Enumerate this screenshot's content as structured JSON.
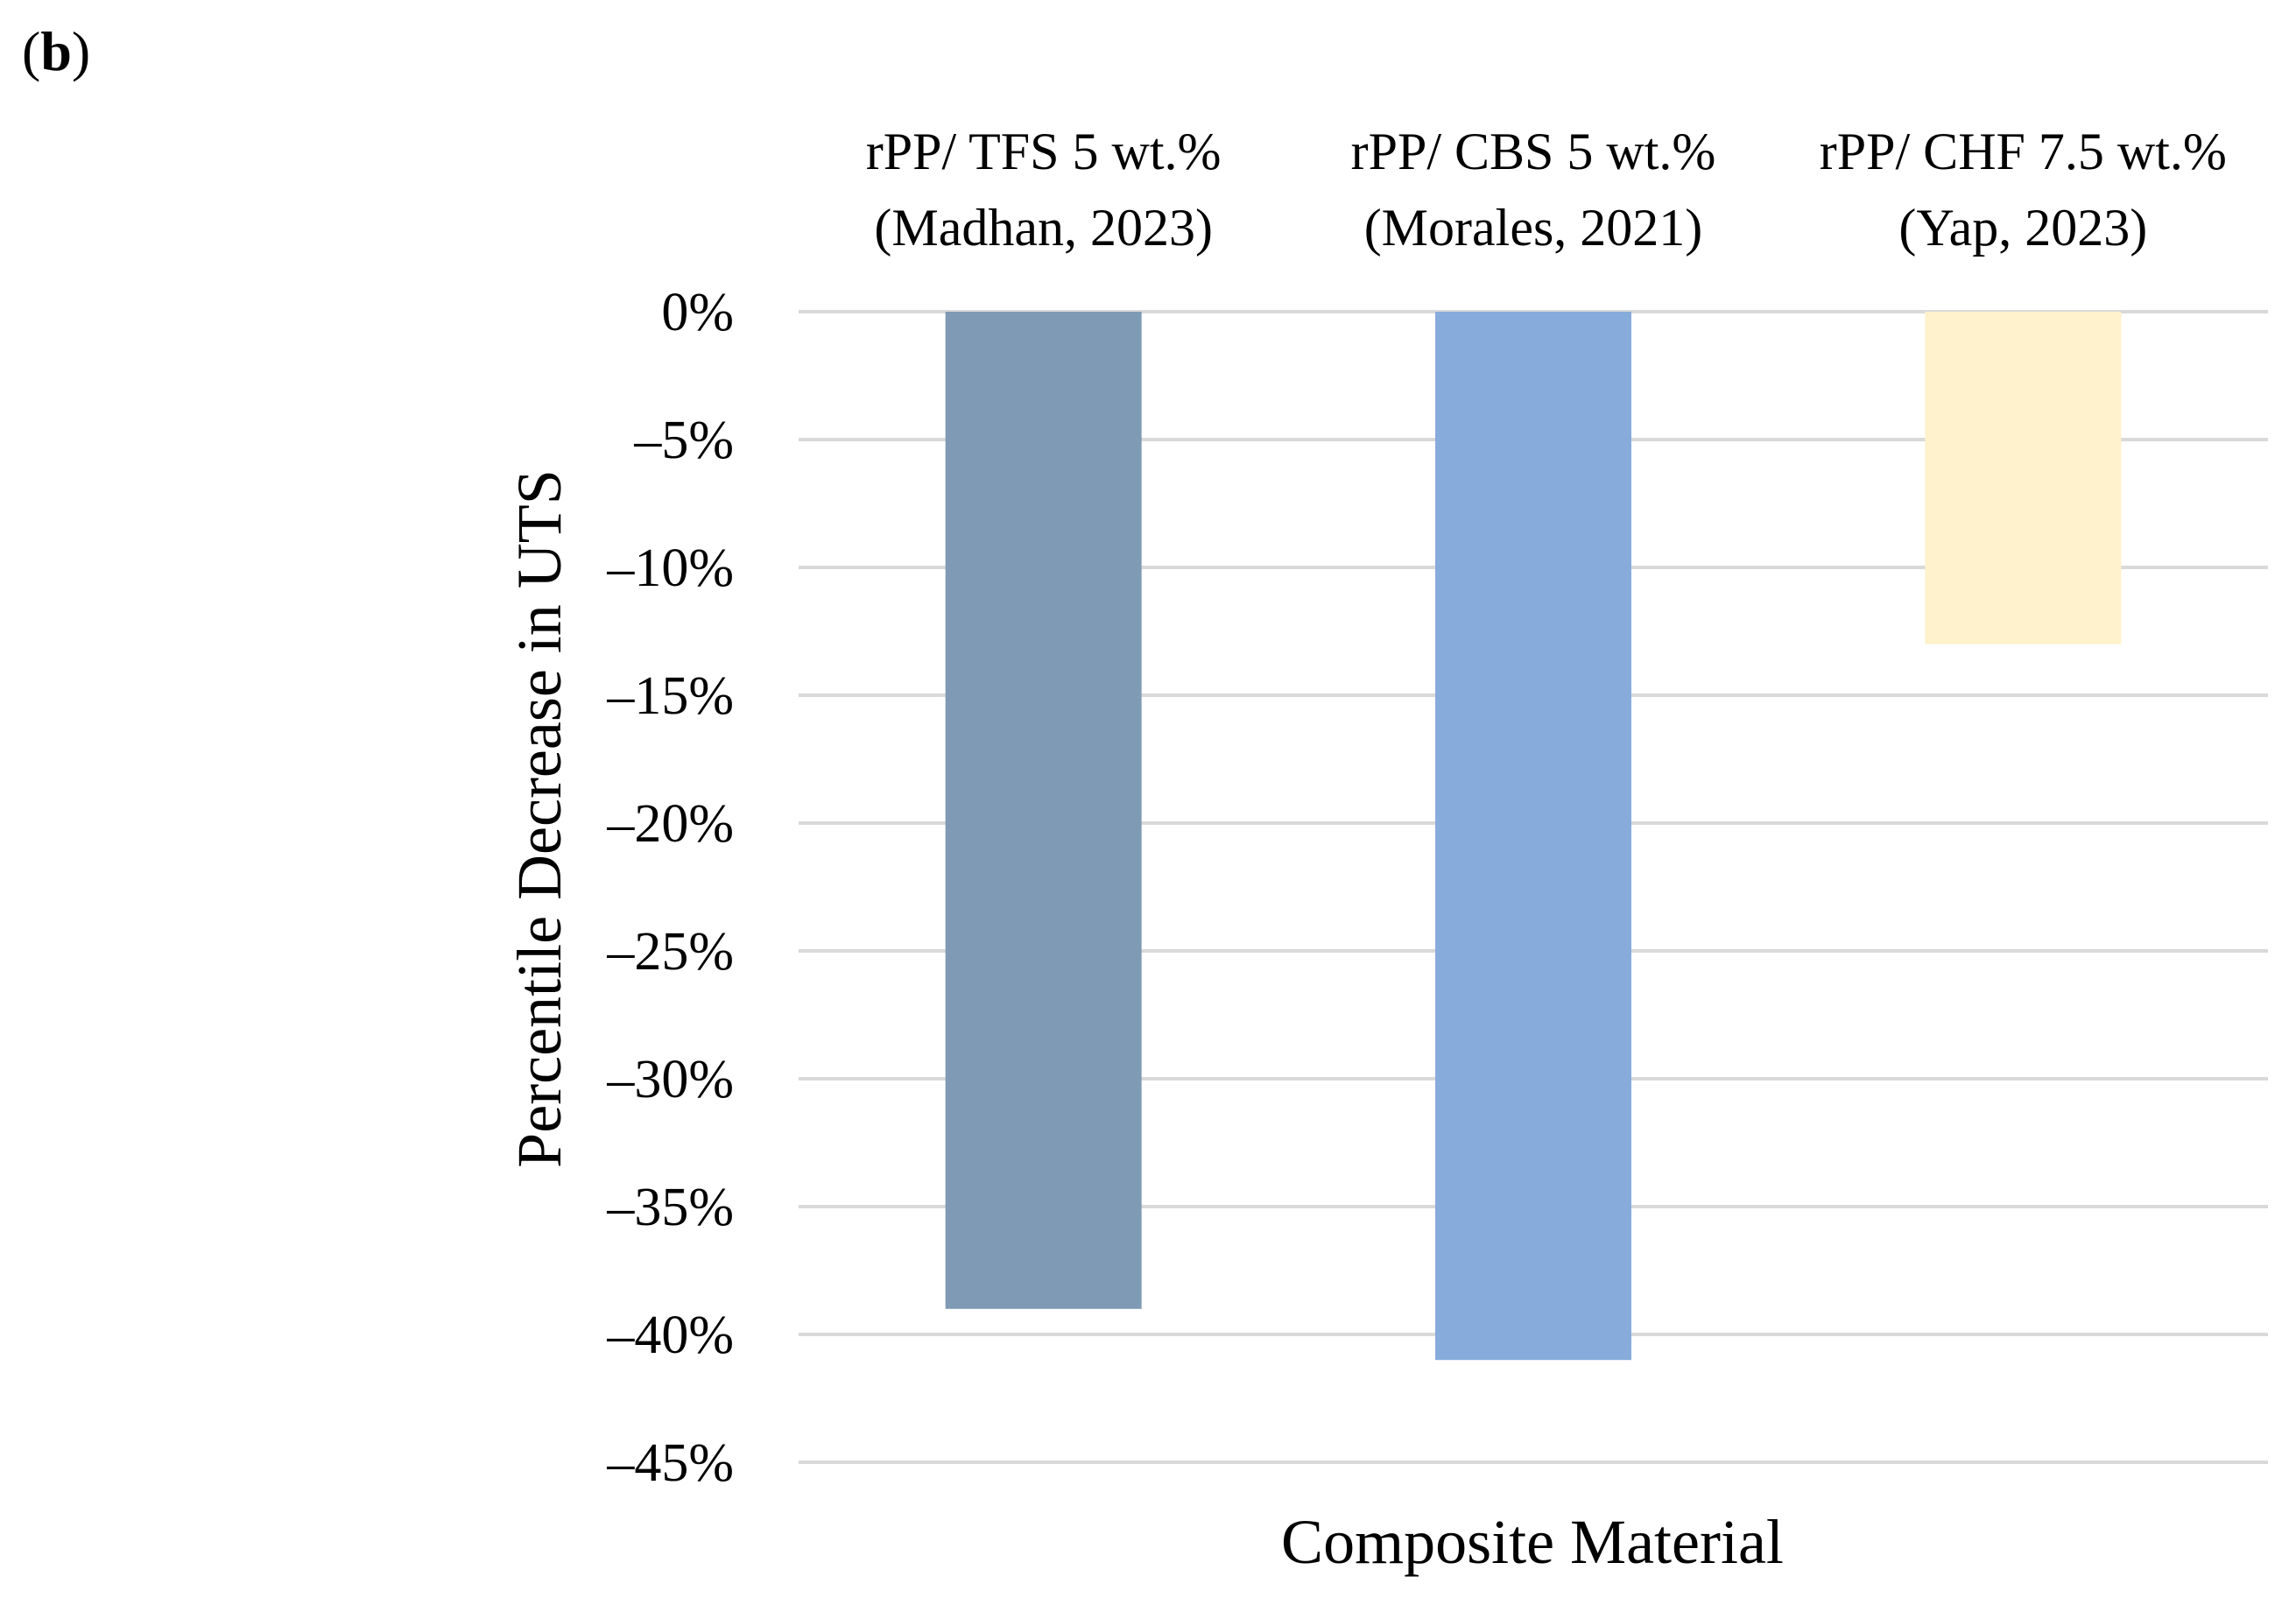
{
  "panel_label": {
    "open": "(",
    "letter": "b",
    "close": ")"
  },
  "chart_data": {
    "type": "bar",
    "categories": [
      {
        "line1": "rPP/ TFS 5 wt.%",
        "line2": "(Madhan, 2023)"
      },
      {
        "line1": "rPP/ CBS 5 wt.%",
        "line2": "(Morales, 2021)"
      },
      {
        "line1": "rPP/ CHF 7.5 wt.%",
        "line2": "(Yap, 2023)"
      }
    ],
    "values": [
      -39,
      -41,
      -13
    ],
    "colors": [
      "#7f9ab5",
      "#87acdc",
      "#fff2cc"
    ],
    "ylim": [
      -45,
      0
    ],
    "yticks": [
      0,
      -5,
      -10,
      -15,
      -20,
      -25,
      -30,
      -35,
      -40,
      -45
    ],
    "ytick_labels": [
      "0%",
      "–5%",
      "–10%",
      "–15%",
      "–20%",
      "–25%",
      "–30%",
      "–35%",
      "–40%",
      "–45%"
    ],
    "xlabel": "Composite Material",
    "ylabel": "Percentile Decrease in UTS",
    "grid": true,
    "category_labels_position": "top"
  }
}
